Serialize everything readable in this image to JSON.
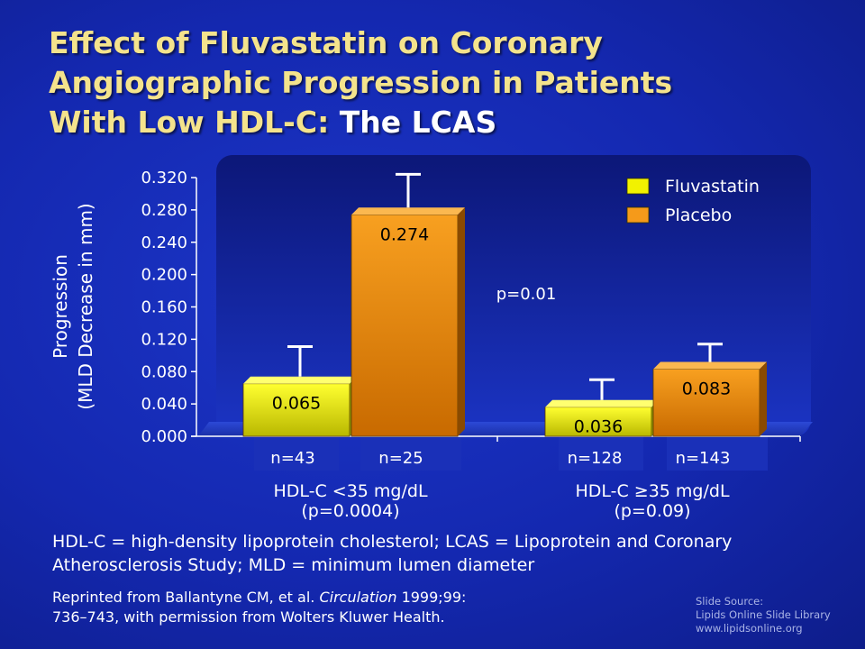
{
  "title": {
    "line1": "Effect of Fluvastatin on Coronary",
    "line2": "Angiographic Progression in Patients",
    "line3_yellow": "With Low HDL-C:",
    "line3_white": " The LCAS"
  },
  "chart_data": {
    "type": "bar",
    "ylabel_line1": "Progression",
    "ylabel_line2": "(MLD Decrease in mm)",
    "ylim": [
      0,
      0.32
    ],
    "yticks": [
      "0.000",
      "0.040",
      "0.080",
      "0.120",
      "0.160",
      "0.200",
      "0.240",
      "0.280",
      "0.320"
    ],
    "legend_position": "top-right",
    "series": [
      {
        "name": "Fluvastatin",
        "color": "#f2f200"
      },
      {
        "name": "Placebo",
        "color": "#f59a1a"
      }
    ],
    "groups": [
      {
        "label": "HDL-C <35 mg/dL",
        "pvalue": "(p=0.0004)",
        "bars": [
          {
            "series": "Fluvastatin",
            "value": 0.065,
            "label": "0.065",
            "error_top": 0.111,
            "n": "n=43"
          },
          {
            "series": "Placebo",
            "value": 0.274,
            "label": "0.274",
            "error_top": 0.324,
            "n": "n=25"
          }
        ]
      },
      {
        "label": "HDL-C ≥35 mg/dL",
        "pvalue": "(p=0.09)",
        "bars": [
          {
            "series": "Fluvastatin",
            "value": 0.036,
            "label": "0.036",
            "error_top": 0.07,
            "n": "n=128"
          },
          {
            "series": "Placebo",
            "value": 0.083,
            "label": "0.083",
            "error_top": 0.114,
            "n": "n=143"
          }
        ]
      }
    ],
    "annotation": "p=0.01"
  },
  "footnote": {
    "line1": "HDL-C = high-density lipoprotein cholesterol; LCAS = Lipoprotein and Coronary",
    "line2": "Atherosclerosis Study; MLD = minimum lumen diameter"
  },
  "reference": {
    "prefix": "Reprinted from Ballantyne CM, et al. ",
    "journal": "Circulation",
    "suffix": " 1999;99:",
    "line2": "736–743, with permission from Wolters Kluwer Health."
  },
  "source": {
    "line1": "Slide Source:",
    "line2": "Lipids Online Slide Library",
    "line3": "www.lipidsonline.org"
  }
}
